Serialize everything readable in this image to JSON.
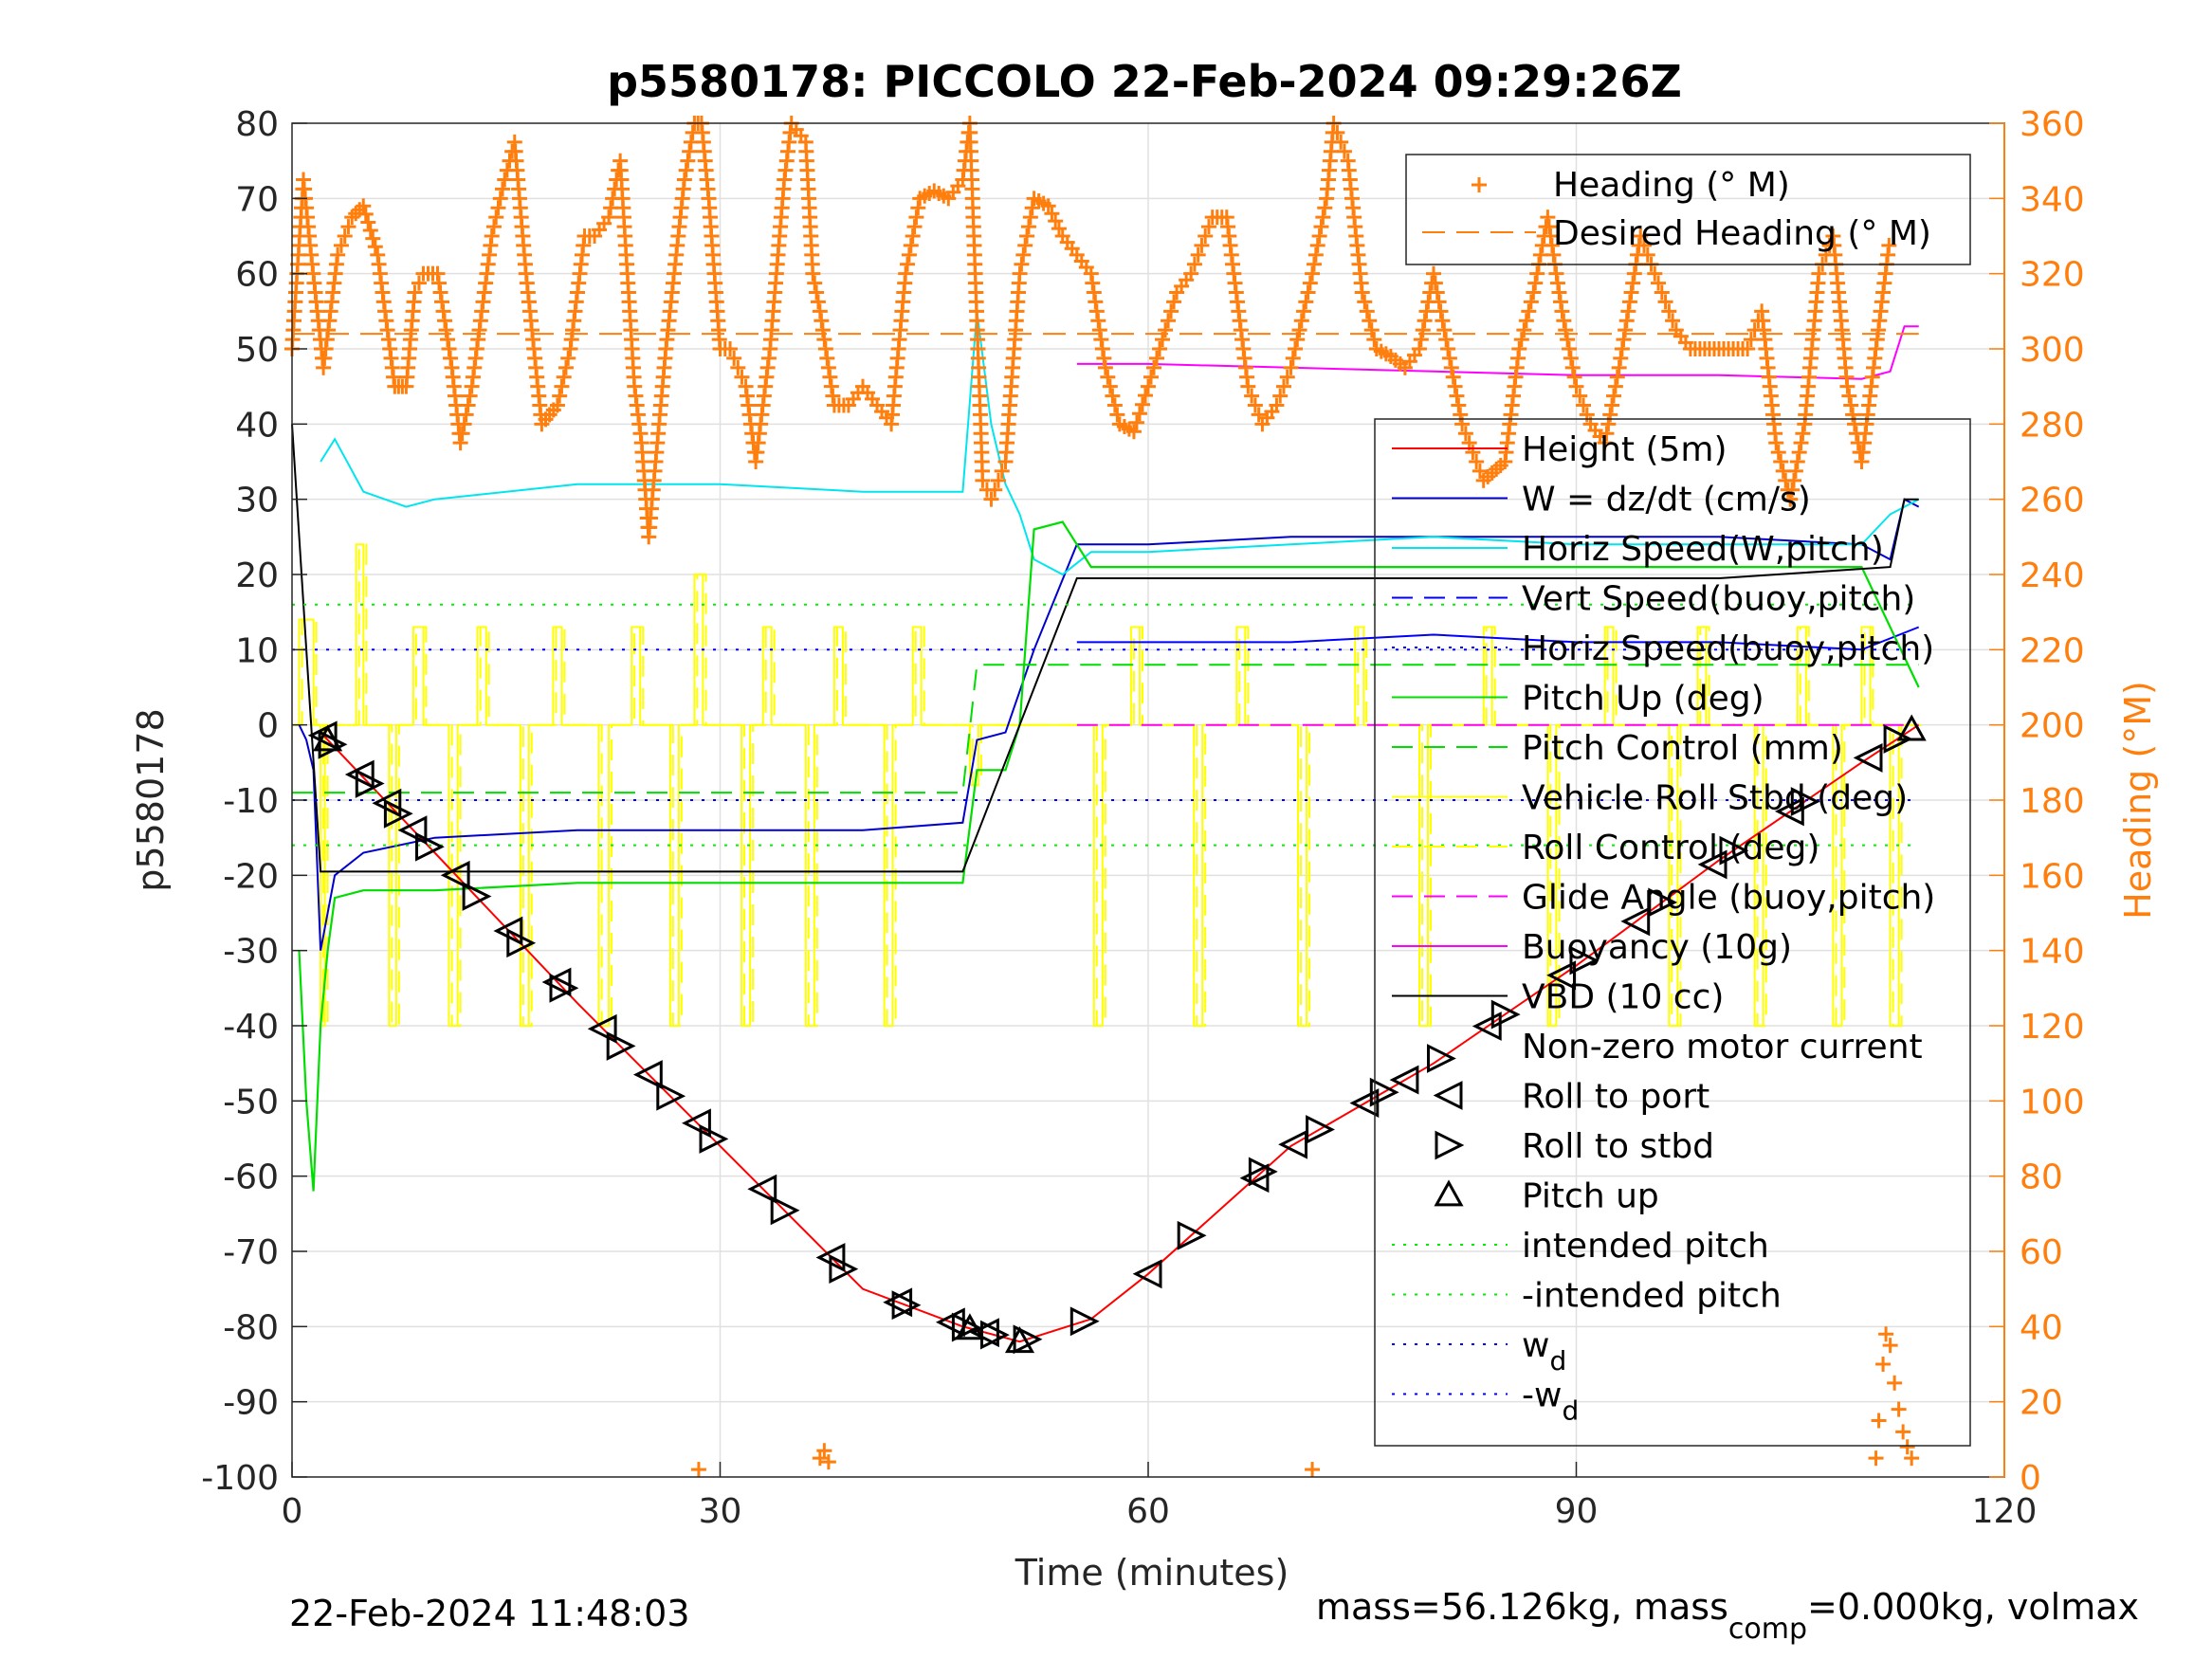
{
  "figure": {
    "title": "p5580178: PICCOLO 22-Feb-2024 09:29:26Z",
    "timestamp": "22-Feb-2024 11:48:03",
    "footer_main": "mass=56.126kg, mass",
    "footer_sub": "comp",
    "footer_tail": "=0.000kg, volmax"
  },
  "colors": {
    "heading": "#ff7f0e",
    "height": "#ff0000",
    "w": "#0000cc",
    "horiz_speed_w": "#00e5ee",
    "vert_speed_buoy": "#0000ff",
    "pitch_up": "#00dd00",
    "roll": "#ffff00",
    "glide_angle": "#ff00ff",
    "vbd": "#000000",
    "intended_pitch": "#00ee00",
    "wd": "#0000ff"
  },
  "chart_data": {
    "type": "line",
    "title": "p5580178: PICCOLO 22-Feb-2024 09:29:26Z",
    "xlabel": "Time (minutes)",
    "ylabel": "p5580178",
    "y2label": "Heading (°M)",
    "xlim": [
      0,
      120
    ],
    "ylim": [
      -100,
      80
    ],
    "y2lim": [
      0,
      360
    ],
    "xticks": [
      0,
      30,
      60,
      90,
      120
    ],
    "yticks": [
      -100,
      -90,
      -80,
      -70,
      -60,
      -50,
      -40,
      -30,
      -20,
      -10,
      0,
      10,
      20,
      30,
      40,
      50,
      60,
      70,
      80
    ],
    "y2ticks": [
      0,
      20,
      40,
      60,
      80,
      100,
      120,
      140,
      160,
      180,
      200,
      220,
      240,
      260,
      280,
      300,
      320,
      340,
      360
    ],
    "grid": true,
    "legend_top": [
      "Heading (° M)",
      "Desired Heading (° M)"
    ],
    "legend_main": [
      "Height (5m)",
      "W = dz/dt (cm/s)",
      "Horiz Speed(W,pitch)",
      "Vert Speed(buoy,pitch)",
      "Horiz Speed(buoy,pitch)",
      "Pitch Up (deg)",
      "Pitch Control (mm)",
      "Vehicle Roll Stbd (deg)",
      "Roll Control (deg)",
      "Glide Angle (buoy,pitch)",
      "Buoyancy (10g)",
      "VBD (10 cc)",
      "Non-zero motor current",
      "Roll to port",
      "Roll to stbd",
      "Pitch up",
      "intended pitch",
      "-intended pitch",
      "w",
      "-w"
    ],
    "legend_sub_d": "d",
    "series": [
      {
        "name": "Height (5m)",
        "x": [
          2,
          10,
          20,
          30,
          40,
          47,
          51,
          56,
          60,
          70,
          80,
          90,
          100,
          110,
          114
        ],
        "y": [
          -1,
          -17,
          -37,
          -56,
          -75,
          -80,
          -82,
          -79,
          -73,
          -56,
          -45,
          -32,
          -18,
          -5,
          0
        ]
      },
      {
        "name": "W = dz/dt (cm/s)",
        "x": [
          0.5,
          1,
          1.5,
          2,
          3,
          5,
          10,
          20,
          30,
          40,
          47,
          48,
          50,
          52,
          55,
          60,
          70,
          80,
          90,
          100,
          110,
          112,
          113,
          114
        ],
        "y": [
          0,
          -2,
          -6,
          -30,
          -20,
          -17,
          -15,
          -14,
          -14,
          -14,
          -13,
          -2,
          -1,
          10,
          24,
          24,
          25,
          25,
          25,
          25,
          24,
          22,
          30,
          29
        ]
      },
      {
        "name": "Horiz Speed(W,pitch)",
        "x": [
          2,
          3,
          5,
          8,
          10,
          20,
          30,
          40,
          47,
          48,
          49,
          50,
          51,
          52,
          54,
          56,
          60,
          70,
          80,
          90,
          100,
          110,
          112,
          114
        ],
        "y": [
          35,
          38,
          31,
          29,
          30,
          32,
          32,
          31,
          31,
          55,
          40,
          32,
          28,
          22,
          20,
          23,
          23,
          24,
          25,
          24,
          24,
          24,
          28,
          30
        ]
      },
      {
        "name": "Vert Speed(buoy,pitch)",
        "x": [
          55,
          60,
          70,
          80,
          90,
          100,
          110,
          114
        ],
        "y": [
          11,
          11,
          11,
          12,
          11,
          11,
          10,
          13
        ]
      },
      {
        "name": "Pitch Up (deg)",
        "x": [
          0.5,
          1,
          1.5,
          2,
          2.5,
          3,
          5,
          10,
          20,
          30,
          40,
          47,
          48,
          50,
          51,
          52,
          54,
          56,
          60,
          70,
          80,
          90,
          100,
          110,
          114
        ],
        "y": [
          -30,
          -50,
          -62,
          -40,
          -30,
          -23,
          -22,
          -22,
          -21,
          -21,
          -21,
          -21,
          -6,
          -6,
          0,
          26,
          27,
          21,
          21,
          21,
          21,
          21,
          21,
          21,
          5
        ]
      },
      {
        "name": "Pitch Control (mm)",
        "x": [
          0,
          47,
          48,
          54,
          55,
          114
        ],
        "y": [
          -9,
          -9,
          8,
          8,
          8,
          8
        ]
      },
      {
        "name": "Glide Angle (buoy,pitch)",
        "x": [
          55,
          114
        ],
        "y": [
          0,
          0
        ]
      },
      {
        "name": "Buoyancy (10g)",
        "x": [
          55,
          60,
          70,
          80,
          90,
          100,
          110,
          112,
          113,
          114
        ],
        "y": [
          48,
          48,
          47.5,
          47,
          46.5,
          46.5,
          46,
          47,
          53,
          53
        ]
      },
      {
        "name": "VBD (10 cc)",
        "x": [
          0,
          1,
          2,
          47,
          51,
          55,
          100,
          112,
          113,
          114
        ],
        "y": [
          40,
          10,
          -19.5,
          -19.5,
          0,
          19.5,
          19.5,
          21,
          30,
          30
        ]
      },
      {
        "name": "intended pitch",
        "x": [
          0,
          114
        ],
        "y": [
          16,
          16
        ]
      },
      {
        "name": "-intended pitch",
        "x": [
          0,
          114
        ],
        "y": [
          -16,
          -16
        ]
      },
      {
        "name": "w",
        "x": [
          0,
          114
        ],
        "y": [
          10,
          10
        ]
      },
      {
        "name": "-w",
        "x": [
          0,
          114
        ],
        "y": [
          -10,
          -10
        ]
      }
    ],
    "roll_signal": {
      "name": "Vehicle Roll Stbd (deg)",
      "baseline": 0,
      "plateaus": [
        {
          "t0": 0.5,
          "t1": 1.5,
          "v": 14
        },
        {
          "t0": 2,
          "t1": 2.3,
          "v": -40
        },
        {
          "t0": 4.5,
          "t1": 5.0,
          "v": 24
        },
        {
          "t0": 6.8,
          "t1": 7.3,
          "v": -40
        },
        {
          "t0": 8.5,
          "t1": 9.2,
          "v": 13
        },
        {
          "t0": 11.0,
          "t1": 11.6,
          "v": -40
        },
        {
          "t0": 13.0,
          "t1": 13.6,
          "v": 13
        },
        {
          "t0": 16.0,
          "t1": 16.6,
          "v": -40
        },
        {
          "t0": 18.3,
          "t1": 18.9,
          "v": 13
        },
        {
          "t0": 21.5,
          "t1": 22.2,
          "v": -40
        },
        {
          "t0": 23.8,
          "t1": 24.4,
          "v": 13
        },
        {
          "t0": 26.5,
          "t1": 27.1,
          "v": -40
        },
        {
          "t0": 28.2,
          "t1": 28.8,
          "v": 20
        },
        {
          "t0": 31.5,
          "t1": 32.1,
          "v": -40
        },
        {
          "t0": 33.0,
          "t1": 33.6,
          "v": 13
        },
        {
          "t0": 36.0,
          "t1": 36.6,
          "v": -40
        },
        {
          "t0": 38.0,
          "t1": 38.6,
          "v": 13
        },
        {
          "t0": 41.5,
          "t1": 42.1,
          "v": -40
        },
        {
          "t0": 43.5,
          "t1": 44.1,
          "v": 13
        },
        {
          "t0": 47.5,
          "t1": 48.1,
          "v": -8
        },
        {
          "t0": 56.2,
          "t1": 56.8,
          "v": -40
        },
        {
          "t0": 58.8,
          "t1": 59.4,
          "v": 13
        },
        {
          "t0": 63.2,
          "t1": 63.8,
          "v": -40
        },
        {
          "t0": 66.2,
          "t1": 66.8,
          "v": 13
        },
        {
          "t0": 70.5,
          "t1": 71.1,
          "v": -40
        },
        {
          "t0": 74.5,
          "t1": 75.1,
          "v": 13
        },
        {
          "t0": 79.0,
          "t1": 79.6,
          "v": -40
        },
        {
          "t0": 83.5,
          "t1": 84.1,
          "v": 13
        },
        {
          "t0": 88.0,
          "t1": 88.6,
          "v": -40
        },
        {
          "t0": 92.0,
          "t1": 92.6,
          "v": 13
        },
        {
          "t0": 96.5,
          "t1": 97.1,
          "v": -40
        },
        {
          "t0": 98.5,
          "t1": 99.1,
          "v": 13
        },
        {
          "t0": 102.5,
          "t1": 103.1,
          "v": -40
        },
        {
          "t0": 105.5,
          "t1": 106.1,
          "v": 13
        },
        {
          "t0": 108.0,
          "t1": 108.6,
          "v": -40
        },
        {
          "t0": 110.0,
          "t1": 110.6,
          "v": 13
        },
        {
          "t0": 112.0,
          "t1": 112.6,
          "v": -40
        }
      ]
    },
    "heading_points": {
      "name": "Heading (° M)",
      "t": [
        0,
        0.8,
        1.2,
        2.2,
        3.2,
        4.2,
        5.0,
        6.0,
        7.2,
        8.0,
        8.6,
        9.2,
        10.2,
        11.2,
        11.8,
        12.6,
        14.0,
        14.9,
        15.6,
        16.4,
        17.5,
        18.6,
        19.5,
        20.5,
        21.2,
        22.2,
        23.0,
        24.0,
        24.5,
        25.0,
        26.2,
        27.5,
        28.2,
        28.7,
        29.2,
        30.0,
        30.7,
        31.8,
        32.5,
        33.5,
        34.5,
        35.0,
        36.0,
        36.5,
        37.0,
        38.0,
        39.0,
        40.0,
        41.0,
        42.0,
        43.0,
        44.0,
        45.0,
        46.0,
        47.0,
        47.5,
        48.4,
        49.0,
        50.0,
        51.0,
        52.0,
        53.0,
        54.0,
        55.0,
        56.0,
        57.0,
        58.0,
        59.0,
        60.0,
        62.0,
        63.0,
        64.5,
        65.5,
        67.0,
        68.0,
        69.0,
        70.0,
        71.5,
        72.5,
        73.0,
        74.0,
        75.0,
        76.0,
        77.0,
        78.0,
        79.0,
        80.0,
        81.0,
        82.0,
        83.5,
        85.0,
        86.0,
        87.0,
        88.0,
        89.0,
        90.0,
        91.0,
        92.0,
        93.0,
        94.5,
        95.5,
        97.0,
        98.0,
        99.0,
        100.0,
        101.0,
        102.0,
        103.0,
        104.0,
        105.0,
        106.0,
        107.0,
        108.0,
        109.0,
        110.0,
        111.0,
        112.0
      ],
      "h": [
        300,
        345,
        330,
        295,
        325,
        335,
        338,
        325,
        290,
        290,
        315,
        320,
        320,
        295,
        275,
        290,
        330,
        345,
        355,
        320,
        280,
        285,
        300,
        330,
        330,
        335,
        350,
        290,
        275,
        250,
        300,
        345,
        360,
        360,
        340,
        300,
        300,
        290,
        270,
        300,
        345,
        360,
        355,
        320,
        310,
        285,
        285,
        290,
        285,
        280,
        320,
        340,
        342,
        340,
        345,
        360,
        265,
        260,
        270,
        320,
        340,
        338,
        330,
        325,
        320,
        295,
        280,
        278,
        290,
        315,
        320,
        335,
        335,
        290,
        280,
        285,
        295,
        320,
        340,
        360,
        350,
        315,
        300,
        298,
        295,
        300,
        320,
        300,
        280,
        265,
        270,
        300,
        315,
        335,
        310,
        290,
        280,
        275,
        295,
        330,
        320,
        305,
        300,
        300,
        300,
        300,
        300,
        310,
        275,
        260,
        280,
        320,
        330,
        290,
        270,
        300,
        330
      ]
    },
    "heading_late": {
      "t": [
        111.0,
        111.2,
        111.5,
        111.7,
        112.0,
        112.3,
        112.6,
        112.9,
        113.2,
        113.5
      ],
      "h": [
        5,
        15,
        30,
        38,
        35,
        25,
        18,
        12,
        8,
        5
      ]
    },
    "heading_low_clusters": [
      {
        "t": 28.5,
        "h": 2
      },
      {
        "t": 37.0,
        "h": 5
      },
      {
        "t": 37.3,
        "h": 7
      },
      {
        "t": 37.6,
        "h": 4
      },
      {
        "t": 71.5,
        "h": 2
      }
    ],
    "desired_heading": {
      "value": 304,
      "t0": 0,
      "t1": 114
    },
    "markers": {
      "roll_to_port_t": [
        2.2,
        4.8,
        6.7,
        8.5,
        11.5,
        15.2,
        18.6,
        21.8,
        25.0,
        28.4,
        33.0,
        37.8,
        42.5,
        46.2,
        48.6,
        60.0,
        67.5,
        70.2,
        75.2,
        78.0,
        83.8,
        89.0,
        94.2,
        99.6,
        105.0,
        110.5
      ],
      "roll_to_stbd_t": [
        2.8,
        5.4,
        7.4,
        9.6,
        12.9,
        16.0,
        19.0,
        23.0,
        26.5,
        29.5,
        34.5,
        38.6,
        43.0,
        47.2,
        49.2,
        51.5,
        55.5,
        63.0,
        68.0,
        72.0,
        76.5,
        80.5,
        85.0,
        90.5,
        96.0,
        101.0,
        106.0,
        112.5
      ],
      "pitch_up_t": [
        2.5,
        47.5,
        51.0,
        113.5
      ]
    }
  }
}
